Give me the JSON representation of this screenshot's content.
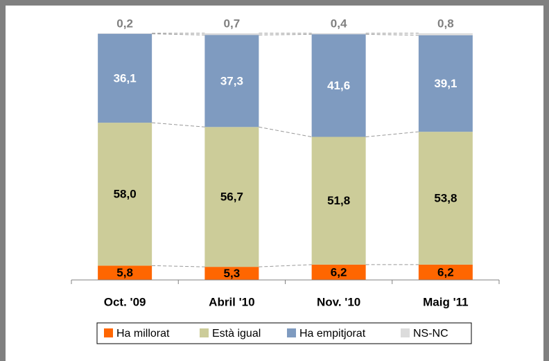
{
  "chart_data": {
    "type": "bar",
    "stacked": true,
    "categories": [
      "Oct. '09",
      "Abril '10",
      "Nov. '10",
      "Maig '11"
    ],
    "series": [
      {
        "name": "Ha millorat",
        "color": "#ff6600",
        "values": [
          5.8,
          5.3,
          6.2,
          6.2
        ],
        "value_labels": [
          "5,8",
          "5,3",
          "6,2",
          "6,2"
        ]
      },
      {
        "name": "Està igual",
        "color": "#cccc99",
        "values": [
          58.0,
          56.7,
          51.8,
          53.8
        ],
        "value_labels": [
          "58,0",
          "56,7",
          "51,8",
          "53,8"
        ]
      },
      {
        "name": "Ha empitjorat",
        "color": "#7f9bc0",
        "values": [
          36.1,
          37.3,
          41.6,
          39.1
        ],
        "value_labels": [
          "36,1",
          "37,3",
          "41,6",
          "39,1"
        ]
      },
      {
        "name": "NS-NC",
        "color": "#dcdcdc",
        "values": [
          0.2,
          0.7,
          0.4,
          0.8
        ],
        "value_labels": [
          "0,2",
          "0,7",
          "0,4",
          "0,8"
        ]
      }
    ],
    "legend": "bottom"
  }
}
